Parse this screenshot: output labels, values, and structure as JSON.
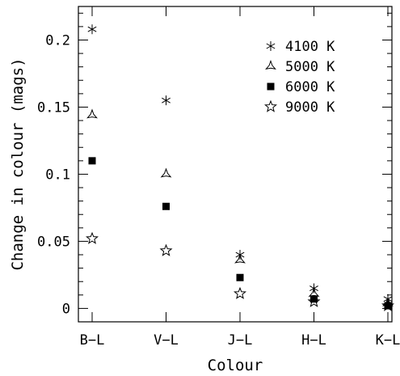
{
  "chart_data": {
    "type": "scatter",
    "title": "",
    "xlabel": "Colour",
    "ylabel": "Change in colour (mags)",
    "categories": [
      "B−L",
      "V−L",
      "J−L",
      "H−L",
      "K−L"
    ],
    "ylim": [
      -0.01,
      0.225
    ],
    "yticks": [
      0,
      0.05,
      0.1,
      0.15,
      0.2
    ],
    "ytick_labels": [
      "0",
      "0.05",
      "0.1",
      "0.15",
      "0.2"
    ],
    "legend_position": "top-right",
    "grid": false,
    "series": [
      {
        "name": "4100 K",
        "marker": "asterisk",
        "values": [
          0.208,
          0.155,
          0.04,
          0.015,
          0.007
        ]
      },
      {
        "name": "5000 K",
        "marker": "three-point-star",
        "values": [
          0.144,
          0.1,
          0.036,
          0.011,
          0.004
        ]
      },
      {
        "name": "6000 K",
        "marker": "filled-square",
        "values": [
          0.11,
          0.076,
          0.023,
          0.007,
          0.002
        ]
      },
      {
        "name": "9000 K",
        "marker": "open-star",
        "values": [
          0.052,
          0.043,
          0.011,
          0.005,
          0.002
        ]
      }
    ]
  }
}
